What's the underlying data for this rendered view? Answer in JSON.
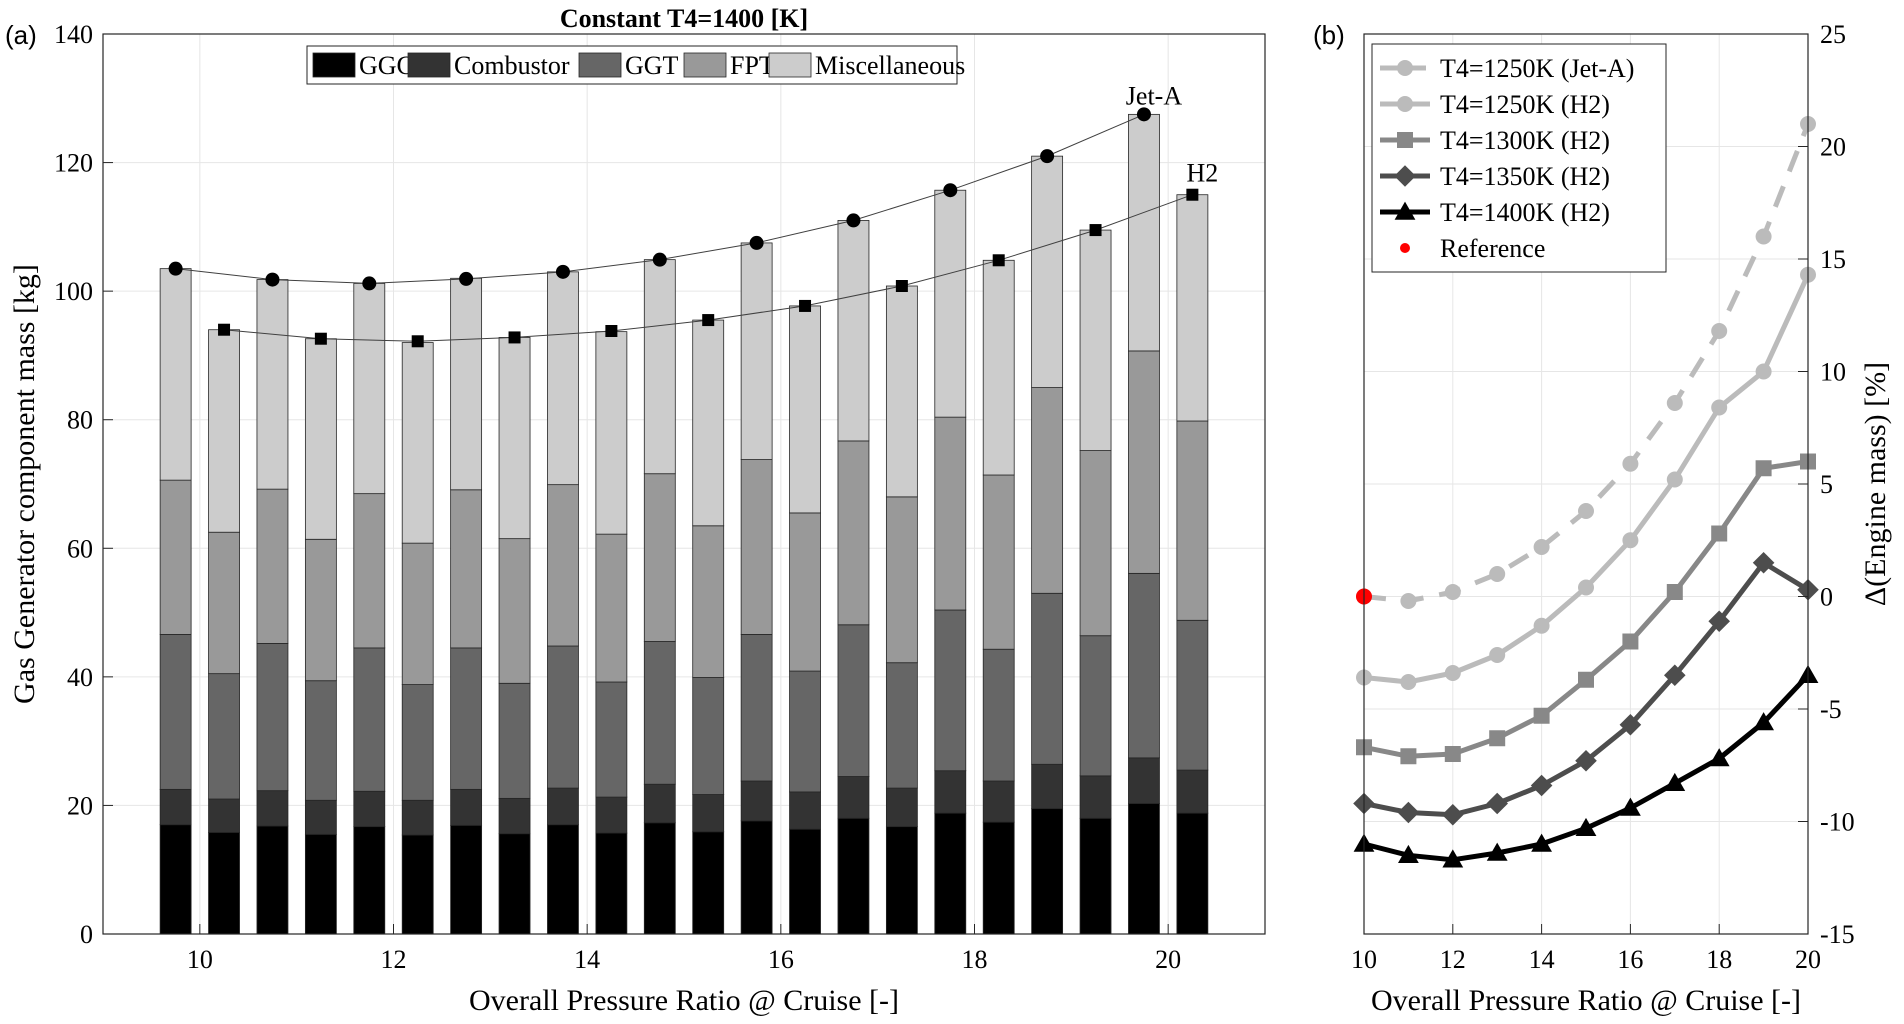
{
  "chart_data": [
    {
      "panel_label": "(a)",
      "type": "bar",
      "title": "Constant T4=1400 [K]",
      "xlabel": "Overall Pressure Ratio @ Cruise [-]",
      "ylabel": "Gas Generator component mass [kg]",
      "xlim": [
        9,
        21
      ],
      "ylim": [
        0,
        140
      ],
      "xticks": [
        "10",
        "12",
        "14",
        "16",
        "18",
        "20"
      ],
      "yticks": [
        "0",
        "20",
        "40",
        "60",
        "80",
        "100",
        "120",
        "140"
      ],
      "grid": true,
      "legend_placement": "top-center",
      "categories": [
        10,
        11,
        12,
        13,
        14,
        15,
        16,
        17,
        18,
        19,
        20
      ],
      "groups": [
        {
          "name": "Jet-A",
          "offset": -0.25,
          "components": [
            {
              "name": "GGC",
              "color": "#000000",
              "values": [
                17,
                16.8,
                16.7,
                16.9,
                17,
                17.3,
                17.6,
                18,
                18.8,
                19.5,
                20.3
              ]
            },
            {
              "name": "Combustor",
              "color": "#333333",
              "values": [
                5.5,
                5.5,
                5.5,
                5.6,
                5.7,
                6,
                6.2,
                6.5,
                6.6,
                6.9,
                7.1
              ]
            },
            {
              "name": "GGT",
              "color": "#666666",
              "values": [
                24.1,
                22.9,
                22.3,
                22,
                22.1,
                22.2,
                22.8,
                23.6,
                25,
                26.6,
                28.7
              ]
            },
            {
              "name": "FPT",
              "color": "#999999",
              "values": [
                24,
                24,
                24,
                24.6,
                25.1,
                26.1,
                27.2,
                28.6,
                30,
                32,
                34.6
              ]
            },
            {
              "name": "Miscellaneous",
              "color": "#cccccc",
              "values": [
                32.9,
                32.6,
                32.7,
                32.9,
                33.1,
                33.3,
                33.7,
                34.3,
                35.3,
                36,
                36.8
              ]
            }
          ],
          "trend": [
            103.5,
            101.8,
            101.2,
            101.9,
            103,
            104.9,
            107.5,
            111,
            115.7,
            121,
            127.5
          ],
          "trend_marker": "circle",
          "annotation": "Jet-A"
        },
        {
          "name": "H2",
          "offset": 0.25,
          "components": [
            {
              "name": "GGC",
              "color": "#000000",
              "values": [
                15.8,
                15.5,
                15.4,
                15.6,
                15.7,
                15.9,
                16.3,
                16.7,
                17.4,
                18,
                18.8
              ]
            },
            {
              "name": "Combustor",
              "color": "#333333",
              "values": [
                5.2,
                5.3,
                5.4,
                5.5,
                5.6,
                5.8,
                5.8,
                6,
                6.4,
                6.6,
                6.7
              ]
            },
            {
              "name": "GGT",
              "color": "#666666",
              "values": [
                19.5,
                18.6,
                18,
                17.9,
                17.9,
                18.2,
                18.8,
                19.5,
                20.5,
                21.8,
                23.3
              ]
            },
            {
              "name": "FPT",
              "color": "#999999",
              "values": [
                22,
                22,
                22,
                22.5,
                23,
                23.6,
                24.6,
                25.8,
                27.1,
                28.8,
                31
              ]
            },
            {
              "name": "Miscellaneous",
              "color": "#cccccc",
              "values": [
                31.5,
                31.2,
                31.2,
                31.3,
                31.5,
                32,
                32.2,
                32.8,
                33.4,
                34.3,
                35.2
              ]
            }
          ],
          "trend": [
            94,
            92.6,
            92.2,
            92.8,
            93.8,
            95.5,
            97.7,
            100.8,
            104.8,
            109.5,
            115
          ],
          "trend_marker": "square",
          "annotation": "H2"
        }
      ],
      "legend": [
        "GGC",
        "Combustor",
        "GGT",
        "FPT",
        "Miscellaneous"
      ]
    },
    {
      "panel_label": "(b)",
      "type": "line",
      "xlabel": "Overall Pressure Ratio @ Cruise [-]",
      "ylabel": "Δ(Engine mass) [%]",
      "ylabel_side": "right",
      "xlim": [
        10,
        20
      ],
      "ylim": [
        -15,
        25
      ],
      "xticks": [
        "10",
        "12",
        "14",
        "16",
        "18",
        "20"
      ],
      "yticks": [
        "-15",
        "-10",
        "-5",
        "0",
        "5",
        "10",
        "15",
        "20",
        "25"
      ],
      "grid": true,
      "legend_placement": "top-left",
      "x": [
        10,
        11,
        12,
        13,
        14,
        15,
        16,
        17,
        18,
        19,
        20
      ],
      "series": [
        {
          "name": "T4=1250K (Jet-A)",
          "color": "#bbbbbb",
          "marker": "circle",
          "dash": true,
          "values": [
            0,
            -0.2,
            0.2,
            1,
            2.2,
            3.8,
            5.9,
            8.6,
            11.8,
            16,
            21
          ]
        },
        {
          "name": "T4=1250K (H2)",
          "color": "#bbbbbb",
          "marker": "circle",
          "dash": false,
          "values": [
            -3.6,
            -3.8,
            -3.4,
            -2.6,
            -1.3,
            0.4,
            2.5,
            5.2,
            8.4,
            10,
            14.3
          ]
        },
        {
          "name": "T4=1300K (H2)",
          "color": "#888888",
          "marker": "square",
          "dash": false,
          "values": [
            -6.7,
            -7.1,
            -7,
            -6.3,
            -5.3,
            -3.7,
            -2,
            0.2,
            2.8,
            5.7,
            6
          ]
        },
        {
          "name": "T4=1350K (H2)",
          "color": "#4d4d4d",
          "marker": "diamond",
          "dash": false,
          "values": [
            -9.2,
            -9.6,
            -9.7,
            -9.2,
            -8.4,
            -7.3,
            -5.7,
            -3.5,
            -1.1,
            1.5,
            0.3
          ]
        },
        {
          "name": "T4=1400K (H2)",
          "color": "#000000",
          "marker": "triangle",
          "dash": false,
          "values": [
            -11,
            -11.5,
            -11.7,
            -11.4,
            -11,
            -10.3,
            -9.4,
            -8.3,
            -7.2,
            -5.6,
            -3.5
          ]
        }
      ],
      "reference": {
        "name": "Reference",
        "color": "#ff0000",
        "x": 10,
        "y": 0
      }
    }
  ]
}
